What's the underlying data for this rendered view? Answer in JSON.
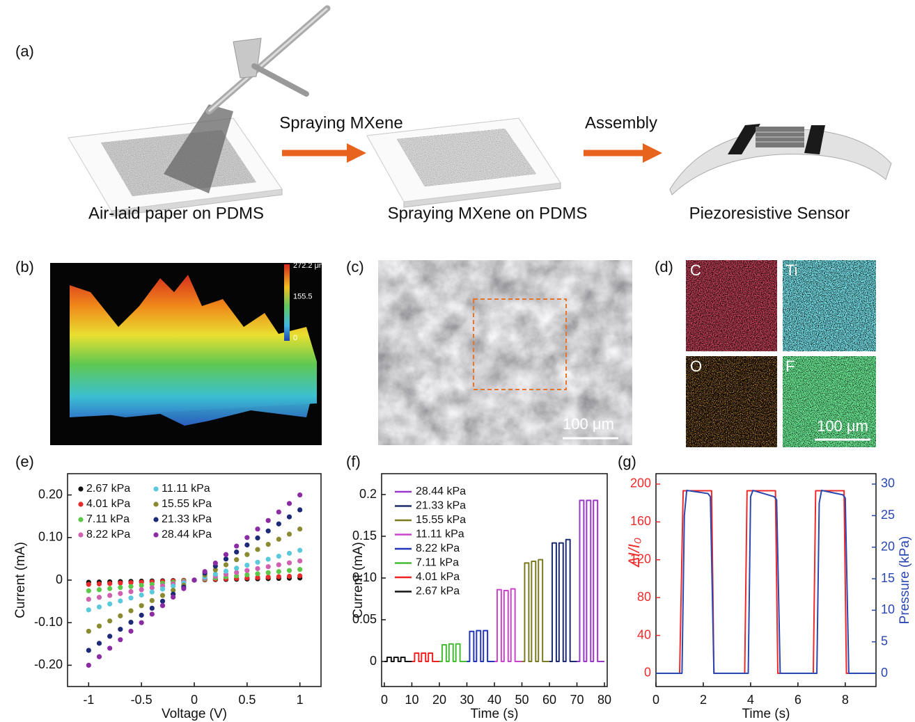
{
  "panel_labels": [
    "(a)",
    "(b)",
    "(c)",
    "(d)",
    "(e)",
    "(f)",
    "(g)"
  ],
  "schematic": {
    "steps": [
      "Air-laid paper on PDMS",
      "Spraying MXene on PDMS",
      "Piezoresistive Sensor"
    ],
    "arrows": [
      "Spraying MXene",
      "Assembly"
    ]
  },
  "profile": {
    "colorbar": [
      {
        "value": 272.2,
        "label": "272.2 μm"
      },
      155.5,
      0
    ]
  },
  "sem": {
    "scale_bar": "100 μm"
  },
  "eds": {
    "elements": [
      "C",
      "Ti",
      "O",
      "F"
    ],
    "scale_bar": "100 μm"
  },
  "chart_data": [
    {
      "type": "scatter",
      "x_label": "Voltage (V)",
      "y_label": "Current (mA)",
      "xlim": [
        -1.2,
        1.2
      ],
      "ylim": [
        -0.25,
        0.25
      ],
      "xticks": [
        -1,
        -0.5,
        0,
        0.5,
        1
      ],
      "yticks": [
        {
          "value": -0.2,
          "label": "-0.20"
        },
        {
          "value": -0.1,
          "label": "-0.10"
        },
        0,
        {
          "value": 0.1,
          "label": "0.10"
        },
        {
          "value": 0.2,
          "label": "0.20"
        }
      ],
      "x": [
        -1,
        -0.9,
        -0.8,
        -0.7,
        -0.6,
        -0.5,
        -0.4,
        -0.3,
        -0.2,
        -0.1,
        0,
        0.1,
        0.2,
        0.3,
        0.4,
        0.5,
        0.6,
        0.7,
        0.8,
        0.9,
        1
      ],
      "series": [
        {
          "name": "2.67 kPa",
          "color": "#111111",
          "values": [
            -0.005,
            -0.0045,
            -0.004,
            -0.0035,
            -0.003,
            -0.0025,
            -0.002,
            -0.0015,
            -0.001,
            -0.0005,
            0,
            0.0005,
            0.001,
            0.0015,
            0.002,
            0.0025,
            0.003,
            0.0035,
            0.004,
            0.0045,
            0.005
          ]
        },
        {
          "name": "4.01 kPa",
          "color": "#e82a2a",
          "values": [
            -0.01,
            -0.009,
            -0.008,
            -0.007,
            -0.006,
            -0.005,
            -0.004,
            -0.003,
            -0.002,
            -0.001,
            0,
            0.001,
            0.002,
            0.003,
            0.004,
            0.005,
            0.006,
            0.007,
            0.008,
            0.009,
            0.01
          ]
        },
        {
          "name": "7.11 kPa",
          "color": "#5cc84a",
          "values": [
            -0.025,
            -0.0225,
            -0.02,
            -0.0175,
            -0.015,
            -0.0125,
            -0.01,
            -0.0075,
            -0.005,
            -0.0025,
            0,
            0.0025,
            0.005,
            0.0075,
            0.01,
            0.0125,
            0.015,
            0.0175,
            0.02,
            0.0225,
            0.025
          ]
        },
        {
          "name": "8.22 kPa",
          "color": "#d060b0",
          "values": [
            -0.045,
            -0.0405,
            -0.036,
            -0.0315,
            -0.027,
            -0.0225,
            -0.018,
            -0.0135,
            -0.009,
            -0.0045,
            0,
            0.0045,
            0.009,
            0.0135,
            0.018,
            0.0225,
            0.027,
            0.0315,
            0.036,
            0.0405,
            0.045
          ]
        },
        {
          "name": "11.11 kPa",
          "color": "#5cc8dc",
          "values": [
            -0.07,
            -0.063,
            -0.056,
            -0.049,
            -0.042,
            -0.035,
            -0.028,
            -0.021,
            -0.014,
            -0.007,
            0,
            0.007,
            0.014,
            0.021,
            0.028,
            0.035,
            0.042,
            0.049,
            0.056,
            0.063,
            0.07
          ]
        },
        {
          "name": "15.55 kPa",
          "color": "#8a8a30",
          "values": [
            -0.12,
            -0.108,
            -0.096,
            -0.084,
            -0.072,
            -0.06,
            -0.048,
            -0.036,
            -0.024,
            -0.012,
            0,
            0.012,
            0.024,
            0.036,
            0.048,
            0.06,
            0.072,
            0.084,
            0.096,
            0.108,
            0.12
          ]
        },
        {
          "name": "21.33 kPa",
          "color": "#1c2a78",
          "values": [
            -0.165,
            -0.1485,
            -0.132,
            -0.1155,
            -0.099,
            -0.0825,
            -0.066,
            -0.0495,
            -0.033,
            -0.0165,
            0,
            0.0165,
            0.033,
            0.0495,
            0.066,
            0.0825,
            0.099,
            0.1155,
            0.132,
            0.1485,
            0.165
          ]
        },
        {
          "name": "28.44 kPa",
          "color": "#8c2ca4",
          "values": [
            -0.2,
            -0.18,
            -0.16,
            -0.14,
            -0.12,
            -0.1,
            -0.08,
            -0.06,
            -0.04,
            -0.02,
            0,
            0.02,
            0.04,
            0.06,
            0.08,
            0.1,
            0.12,
            0.14,
            0.16,
            0.18,
            0.2
          ]
        }
      ]
    },
    {
      "type": "line",
      "x_label": "Time (s)",
      "y_label": "Current (mA)",
      "xlim": [
        -1,
        81
      ],
      "ylim": [
        -0.03,
        0.225
      ],
      "xticks": [
        0,
        10,
        20,
        30,
        40,
        50,
        60,
        70,
        80
      ],
      "yticks": [
        0,
        0.05,
        {
          "value": 0.1,
          "label": "0.10"
        },
        0.15,
        0.2
      ],
      "series": [
        {
          "name": "28.44 kPa",
          "color": "#9a36c8",
          "x": [
            70,
            71,
            71,
            72.5,
            72.5,
            73.5,
            73.5,
            75,
            75,
            76,
            76,
            77.5,
            77.5,
            80
          ],
          "values": [
            0,
            0,
            0.193,
            0.193,
            0,
            0,
            0.193,
            0.193,
            0,
            0,
            0.193,
            0.193,
            0,
            0
          ]
        },
        {
          "name": "21.33 kPa",
          "color": "#1c2a70",
          "x": [
            60,
            61,
            61,
            62.5,
            62.5,
            63.5,
            63.5,
            65,
            65,
            66,
            66,
            67.5,
            67.5,
            70
          ],
          "values": [
            0,
            0,
            0.142,
            0.142,
            0,
            0,
            0.142,
            0.142,
            0,
            0,
            0.146,
            0.146,
            0,
            0
          ]
        },
        {
          "name": "15.55 kPa",
          "color": "#7a7a20",
          "x": [
            50,
            51,
            51,
            52.5,
            52.5,
            53.5,
            53.5,
            55,
            55,
            56,
            56,
            57.5,
            57.5,
            60
          ],
          "values": [
            0,
            0,
            0.118,
            0.118,
            0,
            0,
            0.12,
            0.12,
            0,
            0,
            0.122,
            0.122,
            0,
            0
          ]
        },
        {
          "name": "11.11 kPa",
          "color": "#cc44cc",
          "x": [
            40,
            41,
            41,
            42.5,
            42.5,
            43.5,
            43.5,
            45,
            45,
            46,
            46,
            47.5,
            47.5,
            50
          ],
          "values": [
            0,
            0,
            0.086,
            0.086,
            0,
            0,
            0.085,
            0.085,
            0,
            0,
            0.087,
            0.087,
            0,
            0
          ]
        },
        {
          "name": "8.22 kPa",
          "color": "#2233bb",
          "x": [
            30,
            31,
            31,
            32.5,
            32.5,
            33.5,
            33.5,
            35,
            35,
            36,
            36,
            37.5,
            37.5,
            40
          ],
          "values": [
            0,
            0,
            0.036,
            0.036,
            0,
            0,
            0.037,
            0.037,
            0,
            0,
            0.037,
            0.037,
            0,
            0
          ]
        },
        {
          "name": "7.11 kPa",
          "color": "#44bb33",
          "x": [
            20,
            21,
            21,
            22.5,
            22.5,
            23.5,
            23.5,
            25,
            25,
            26,
            26,
            27.5,
            27.5,
            30
          ],
          "values": [
            0,
            0,
            0.02,
            0.02,
            0,
            0,
            0.021,
            0.021,
            0,
            0,
            0.021,
            0.021,
            0,
            0
          ]
        },
        {
          "name": "4.01 kPa",
          "color": "#ee2222",
          "x": [
            10,
            11,
            11,
            12.5,
            12.5,
            13.5,
            13.5,
            15,
            15,
            16,
            16,
            17.5,
            17.5,
            20
          ],
          "values": [
            0,
            0,
            0.01,
            0.01,
            0,
            0,
            0.01,
            0.01,
            0,
            0,
            0.01,
            0.01,
            0,
            0
          ]
        },
        {
          "name": "2.67 kPa",
          "color": "#111111",
          "x": [
            0,
            1,
            1,
            2.5,
            2.5,
            3.5,
            3.5,
            5,
            5,
            6,
            6,
            7.5,
            7.5,
            10
          ],
          "values": [
            0,
            0,
            0.005,
            0.005,
            0,
            0,
            0.005,
            0.005,
            0,
            0,
            0.005,
            0.005,
            0,
            0
          ]
        }
      ]
    },
    {
      "type": "line",
      "x_label": "Time (s)",
      "y_label": "ΔI/I₀",
      "y2_label": "Pressure (kPa)",
      "xlim": [
        0,
        9.3
      ],
      "ylim": [
        -14,
        211
      ],
      "y2lim": [
        -2.09,
        31.65
      ],
      "xticks": [
        0,
        2,
        4,
        6,
        8
      ],
      "yticks": [
        0,
        40,
        80,
        120,
        160,
        200
      ],
      "y2ticks": [
        0,
        5,
        10,
        15,
        20,
        25,
        30
      ],
      "series": [
        {
          "color": "#ee2a2a",
          "x": [
            0,
            1.0,
            1.15,
            2.35,
            2.45,
            3.75,
            3.85,
            5.05,
            5.15,
            6.65,
            6.75,
            7.95,
            8.05,
            9.3
          ],
          "values": [
            0,
            0,
            193,
            193,
            0,
            0,
            193,
            193,
            0,
            0,
            193,
            193,
            0,
            0
          ]
        },
        {
          "color": "#2a46b0",
          "axis": "y2",
          "x": [
            0,
            1.1,
            1.2,
            1.3,
            2.2,
            2.3,
            2.45,
            3.9,
            4.0,
            4.1,
            5.0,
            5.1,
            5.25,
            6.8,
            6.9,
            7.0,
            7.9,
            8.0,
            8.15,
            9.3
          ],
          "values": [
            0,
            0,
            25,
            29,
            28.5,
            28,
            0,
            0,
            28,
            29,
            28,
            27.5,
            0,
            0,
            27,
            29,
            28.3,
            27.8,
            0,
            0
          ]
        }
      ]
    }
  ]
}
